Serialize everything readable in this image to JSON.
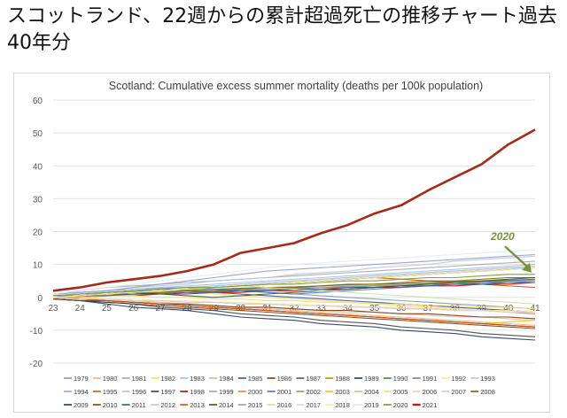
{
  "heading": "スコットランド、22週からの累計超過死亡の推移チャート過去40年分",
  "chart_data": {
    "type": "line",
    "title": "Scotland: Cumulative excess summer mortality (deaths per 100k population)",
    "xlabel": "",
    "ylabel": "",
    "x": [
      23,
      24,
      25,
      26,
      27,
      28,
      29,
      30,
      31,
      32,
      33,
      34,
      35,
      36,
      37,
      38,
      39,
      40,
      41
    ],
    "ylim": [
      -20,
      60
    ],
    "yticks": [
      -20,
      -10,
      0,
      10,
      20,
      30,
      40,
      50,
      60
    ],
    "grid": true,
    "legend_position": "bottom",
    "annotation": {
      "text": "2020",
      "color": "#76923c",
      "points_to_week": 41,
      "points_to_value": 7
    },
    "highlight_series": "2021",
    "series": [
      {
        "name": "1979",
        "color": "#8497b0",
        "values": [
          1,
          1.5,
          2,
          2.5,
          2.8,
          3,
          2.5,
          2,
          1.5,
          1,
          0.5,
          0,
          -0.5,
          -1,
          -1.5,
          -2,
          -2.5,
          -3,
          -3.5
        ]
      },
      {
        "name": "1980",
        "color": "#f4b183",
        "values": [
          0.5,
          0,
          -0.5,
          -1,
          -1.5,
          -2,
          -2.5,
          -3,
          -3.5,
          -4,
          -4.5,
          -5,
          -5.5,
          -6,
          -6.5,
          -7,
          -7.5,
          -8,
          -8.5
        ]
      },
      {
        "name": "1981",
        "color": "#a6a6a6",
        "values": [
          1,
          2,
          3,
          3.5,
          4,
          4.5,
          5,
          5.5,
          6,
          6.5,
          7,
          7.5,
          8,
          8.5,
          9,
          9.5,
          10,
          10.5,
          11
        ]
      },
      {
        "name": "1982",
        "color": "#ffd966",
        "values": [
          0,
          0.5,
          1,
          1.5,
          2,
          1.5,
          1,
          0.5,
          0,
          -0.5,
          -1,
          -1.5,
          -2,
          -2.5,
          -3,
          -3.5,
          -4,
          -4.5,
          -5
        ]
      },
      {
        "name": "1983",
        "color": "#9dc3e6",
        "values": [
          1,
          1.5,
          2,
          2.5,
          3,
          3.5,
          4,
          4.5,
          5,
          5.5,
          6,
          6.5,
          7,
          7.5,
          8,
          8.5,
          9,
          9.5,
          10
        ]
      },
      {
        "name": "1984",
        "color": "#a9d18e",
        "values": [
          0,
          -0.5,
          -1,
          -1.5,
          -2,
          -2.5,
          -3,
          -3.5,
          -4,
          -4.5,
          -5,
          -5.5,
          -6,
          -6.5,
          -7,
          -7.5,
          -8,
          -8.5,
          -9
        ]
      },
      {
        "name": "1985",
        "color": "#2f5597",
        "values": [
          0.5,
          1,
          1.5,
          2,
          2.5,
          2,
          1.5,
          1,
          0.5,
          0,
          -0.5,
          -1,
          -1.5,
          -2,
          -2.5,
          -3,
          -3.5,
          -4,
          -4.5
        ]
      },
      {
        "name": "1986",
        "color": "#843c0c",
        "values": [
          -0.5,
          -1,
          -1.5,
          -2,
          -2.5,
          -3,
          -3.5,
          -4,
          -4.5,
          -5,
          -5.5,
          -6,
          -6.5,
          -7,
          -7.5,
          -8,
          -8.5,
          -9,
          -9.5
        ]
      },
      {
        "name": "1987",
        "color": "#595959",
        "values": [
          0,
          0.5,
          1,
          1.5,
          2,
          2.5,
          3,
          3.5,
          4,
          4.5,
          5,
          5.5,
          6,
          6.5,
          7,
          7.5,
          8,
          8.5,
          9
        ]
      },
      {
        "name": "1988",
        "color": "#bf9000",
        "values": [
          0,
          0.3,
          0.6,
          0.9,
          1.2,
          1.5,
          1.8,
          2.1,
          2.4,
          2.7,
          3,
          3.3,
          3.6,
          3.9,
          4.2,
          4.5,
          4.8,
          5.1,
          5.4
        ]
      },
      {
        "name": "1989",
        "color": "#1f3864",
        "values": [
          -0.5,
          -1,
          -2,
          -3,
          -3.5,
          -4,
          -5,
          -6,
          -6.5,
          -7,
          -8,
          -8.5,
          -9,
          -10,
          -10.5,
          -11,
          -12,
          -12.5,
          -13
        ]
      },
      {
        "name": "1990",
        "color": "#548235",
        "values": [
          0.5,
          1,
          1.5,
          1.8,
          2,
          2.3,
          2.5,
          2.8,
          3,
          3.2,
          3.5,
          3.8,
          4,
          4.2,
          4.5,
          4.8,
          5,
          5.2,
          5.5
        ]
      },
      {
        "name": "1991",
        "color": "#7f7f7f",
        "values": [
          0.5,
          0.5,
          1,
          1,
          1.5,
          1.5,
          2,
          2,
          2.5,
          2.5,
          3,
          3,
          3.5,
          3.5,
          4,
          4,
          4.5,
          4.5,
          5
        ]
      },
      {
        "name": "1992",
        "color": "#ffe699",
        "values": [
          0,
          0,
          -0.5,
          -0.5,
          -1,
          -1,
          -1.5,
          -1.5,
          -2,
          -2,
          -2.5,
          -2.5,
          -3,
          -3,
          -3.5,
          -3.5,
          -4,
          -4,
          -4.5
        ]
      },
      {
        "name": "1993",
        "color": "#b4c7e7",
        "values": [
          1,
          1.5,
          2,
          3,
          3.5,
          4,
          5,
          5.5,
          6,
          7,
          7.5,
          8,
          9,
          9.5,
          10,
          11,
          11.5,
          12,
          12.5
        ]
      },
      {
        "name": "1994",
        "color": "#8faadc",
        "values": [
          0.5,
          1,
          1.5,
          2,
          2.5,
          3,
          3.5,
          4,
          4.5,
          5,
          5.5,
          6,
          6.5,
          7,
          7.5,
          8,
          8.5,
          9,
          9.5
        ]
      },
      {
        "name": "1995",
        "color": "#c55a11",
        "values": [
          0,
          0.5,
          1,
          1.5,
          2,
          2.5,
          3,
          3.5,
          4,
          4.5,
          5,
          5.5,
          6,
          5.5,
          5,
          4.5,
          4,
          3.5,
          3
        ]
      },
      {
        "name": "1996",
        "color": "#bfbfbf",
        "values": [
          0,
          -0.5,
          -1,
          -1.5,
          -2,
          -2,
          -2.5,
          -3,
          -3,
          -3.5,
          -4,
          -4,
          -4.5,
          -5,
          -5,
          -5.5,
          -6,
          -6,
          -6.5
        ]
      },
      {
        "name": "1997",
        "color": "#404040",
        "values": [
          -0.5,
          -1,
          -1.5,
          -2,
          -3,
          -3.5,
          -4,
          -5,
          -5.5,
          -6,
          -7,
          -7.5,
          -8,
          -9,
          -9.5,
          -10,
          -11,
          -11.5,
          -12
        ]
      },
      {
        "name": "1998",
        "color": "#c00000",
        "values": [
          0,
          0,
          0.5,
          0.5,
          1,
          1,
          1.5,
          1.5,
          2,
          2,
          2.5,
          2.5,
          3,
          3,
          3.5,
          3.5,
          4,
          4,
          4.5
        ]
      },
      {
        "name": "1999",
        "color": "#a5a5a5",
        "values": [
          0.5,
          1,
          1,
          1.5,
          1.5,
          2,
          2,
          2.5,
          2.5,
          3,
          3,
          3.5,
          3.5,
          4,
          4,
          4.5,
          4.5,
          5,
          5
        ]
      },
      {
        "name": "2000",
        "color": "#ed7d31",
        "values": [
          0,
          -0.5,
          -0.5,
          -1,
          -1,
          -1.5,
          -1.5,
          -2,
          -2,
          -2.5,
          -2.5,
          -3,
          -3,
          -3.5,
          -3.5,
          -4,
          -4,
          -4.5,
          -5
        ]
      },
      {
        "name": "2001",
        "color": "#4472c4",
        "values": [
          0.5,
          1,
          1.5,
          2,
          2.5,
          3,
          2.5,
          2,
          1.5,
          1,
          1.5,
          2,
          2.5,
          3,
          3.5,
          4,
          4.5,
          5,
          5.5
        ]
      },
      {
        "name": "2002",
        "color": "#70ad47",
        "values": [
          0,
          0.5,
          1,
          1.5,
          2,
          2.5,
          3,
          3.5,
          4,
          4.5,
          5,
          5.5,
          6,
          6.5,
          7,
          7.5,
          8,
          8.5,
          9
        ]
      },
      {
        "name": "2003",
        "color": "#ffc000",
        "values": [
          0,
          -0.5,
          -1,
          -1.5,
          -2,
          -2.5,
          -3,
          -3.5,
          -4,
          -4.5,
          -5,
          -5.5,
          -6,
          -6.5,
          -7,
          -7.5,
          -8,
          -7.5,
          -7
        ]
      },
      {
        "name": "2004",
        "color": "#a9d18e",
        "values": [
          0,
          0.5,
          0.5,
          1,
          1,
          1.5,
          1.5,
          2,
          2,
          2.5,
          2.5,
          3,
          3,
          3.5,
          3.5,
          4,
          4,
          4.5,
          4.5
        ]
      },
      {
        "name": "2005",
        "color": "#ffd966",
        "values": [
          0,
          0,
          0.5,
          0.5,
          0,
          0,
          -0.5,
          -0.5,
          -1,
          -1,
          -1.5,
          -1.5,
          -2,
          -2,
          -2.5,
          -2.5,
          -3,
          -3,
          -3.5
        ]
      },
      {
        "name": "2006",
        "color": "#f8cbad",
        "values": [
          0.5,
          1,
          1.5,
          2,
          2.5,
          3,
          3.5,
          4,
          4.5,
          5,
          5.5,
          6,
          6.5,
          7,
          7.5,
          8,
          8.5,
          9,
          9.5
        ]
      },
      {
        "name": "2007",
        "color": "#c9c9c9",
        "values": [
          0,
          -0.5,
          -1,
          -1.5,
          -1.5,
          -2,
          -2.5,
          -3,
          -3,
          -3.5,
          -4,
          -4.5,
          -4.5,
          -5,
          -5.5,
          -6,
          -6,
          -6.5,
          -7
        ]
      },
      {
        "name": "2008",
        "color": "#7f6000",
        "values": [
          0,
          0.5,
          1,
          1,
          1.5,
          2,
          2,
          2.5,
          3,
          3,
          3.5,
          4,
          4,
          4.5,
          5,
          5,
          5.5,
          6,
          6
        ]
      },
      {
        "name": "2009",
        "color": "#203864",
        "values": [
          0,
          -0.5,
          -1,
          -1.5,
          -2,
          -2.5,
          -3,
          -3.5,
          -4,
          -4.5,
          -5,
          -5.5,
          -6,
          -6.5,
          -7,
          -7.5,
          -8,
          -8.5,
          -9
        ]
      },
      {
        "name": "2010",
        "color": "#833c0b",
        "values": [
          -0.5,
          -1,
          -1,
          -1.5,
          -2,
          -2,
          -2.5,
          -3,
          -3,
          -3.5,
          -4,
          -4,
          -4.5,
          -5,
          -5,
          -5.5,
          -6,
          -6,
          -6.5
        ]
      },
      {
        "name": "2011",
        "color": "#305496",
        "values": [
          0,
          0.5,
          0.5,
          1,
          1,
          1.5,
          1.5,
          2,
          2,
          2.5,
          2.5,
          3,
          3,
          3.5,
          3.5,
          4,
          4,
          4.5,
          4.5
        ]
      },
      {
        "name": "2012",
        "color": "#b4c7e7",
        "values": [
          0.5,
          1,
          1.5,
          2,
          2.5,
          3,
          3.5,
          4,
          4.5,
          5,
          5.5,
          6,
          6.5,
          7,
          7.5,
          8,
          8.5,
          9,
          9
        ]
      },
      {
        "name": "2013",
        "color": "#c65911",
        "values": [
          0,
          -0.5,
          -1,
          -1.5,
          -2,
          -2.5,
          -3,
          -3.5,
          -4,
          -4.5,
          -5,
          -5.5,
          -6,
          -6.5,
          -7,
          -7.5,
          -8,
          -8.5,
          -9
        ]
      },
      {
        "name": "2014",
        "color": "#375623",
        "values": [
          0,
          0.5,
          1,
          1.5,
          1,
          0.5,
          0,
          0.5,
          1,
          1.5,
          2,
          2.5,
          3,
          3.5,
          4,
          4.5,
          5,
          5.5,
          6
        ]
      },
      {
        "name": "2015",
        "color": "#9999cc",
        "values": [
          1,
          1.5,
          2,
          3,
          4,
          5,
          6,
          7,
          8,
          8.5,
          9,
          9.5,
          10,
          10.5,
          11,
          11.5,
          12,
          12.5,
          13
        ]
      },
      {
        "name": "2016",
        "color": "#c5e0b4",
        "values": [
          0,
          0.5,
          1,
          1.5,
          2,
          2.5,
          3,
          3.5,
          3,
          2.5,
          2,
          1.5,
          1,
          0.5,
          0,
          -0.5,
          -1,
          -1.5,
          -2
        ]
      },
      {
        "name": "2017",
        "color": "#d9d9d9",
        "values": [
          0,
          -0.5,
          -0.5,
          -1,
          -1,
          -1.5,
          -1.5,
          -2,
          -2,
          -2.5,
          -2.5,
          -3,
          -3,
          -3.5,
          -3.5,
          -4,
          -4,
          -4.5,
          -4.5
        ]
      },
      {
        "name": "2018",
        "color": "#ffe699",
        "values": [
          0,
          0.5,
          1,
          1.5,
          2,
          2.5,
          3,
          3.5,
          4,
          4.5,
          5,
          5.5,
          6,
          6.5,
          7,
          7.5,
          8,
          8.5,
          9
        ]
      },
      {
        "name": "2019",
        "color": "#deebf7",
        "values": [
          1,
          2,
          3,
          4,
          5,
          6,
          7,
          8,
          9,
          10,
          10.5,
          11,
          11.5,
          12,
          12.5,
          13,
          13.5,
          14,
          14.5
        ]
      },
      {
        "name": "2020",
        "color": "#76923c",
        "values": [
          0.5,
          1,
          1.5,
          2,
          2.5,
          3,
          3,
          3.5,
          4,
          4,
          4.5,
          5,
          5,
          5.5,
          6,
          6,
          6.5,
          7,
          7
        ]
      },
      {
        "name": "2021",
        "color": "#a52a1a",
        "values": [
          2,
          3,
          4.5,
          5.5,
          6.5,
          8,
          10,
          13.5,
          15,
          16.5,
          19.5,
          22,
          25.5,
          28,
          32.5,
          36.5,
          40.5,
          46.5,
          51
        ]
      }
    ]
  }
}
